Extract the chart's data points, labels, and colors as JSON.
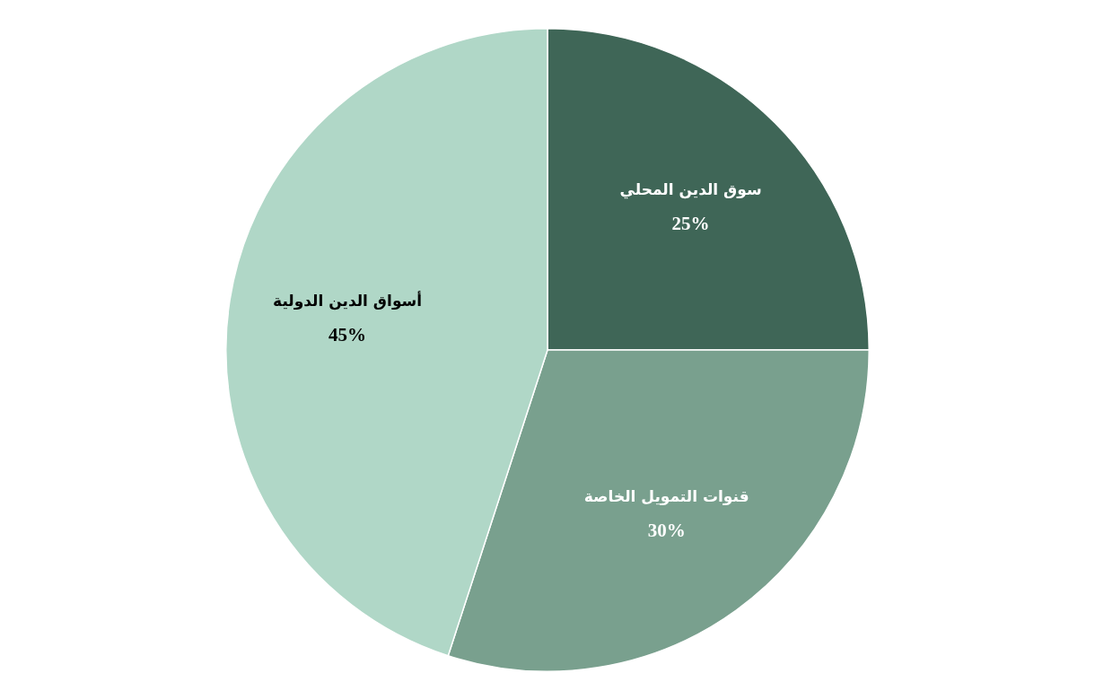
{
  "chart_data": {
    "type": "pie",
    "categories": [
      "سوق الدين المحلي",
      "قنوات التمويل الخاصة",
      "أسواق الدين الدولية"
    ],
    "values": [
      25,
      30,
      45
    ],
    "colors": [
      "#3f6657",
      "#79a08e",
      "#b0d7c7"
    ],
    "value_labels": [
      "25%",
      "30%",
      "45%"
    ],
    "legend": false
  }
}
